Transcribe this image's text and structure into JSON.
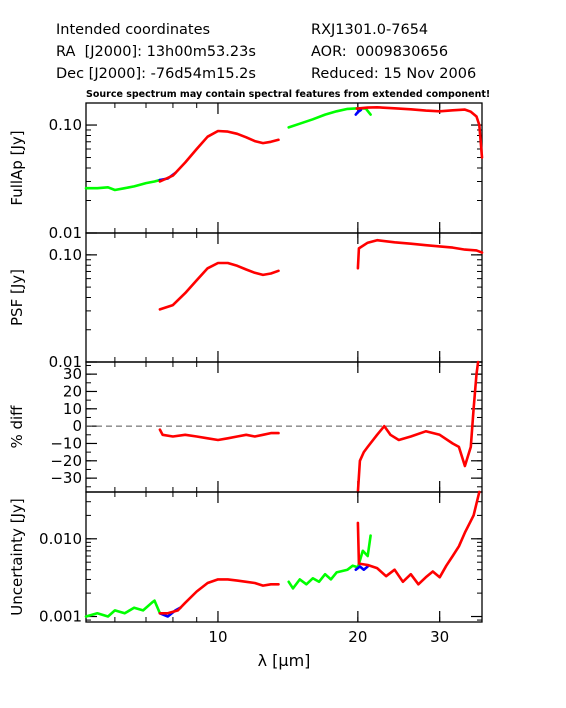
{
  "header": {
    "left": [
      "Intended coordinates",
      "RA  [J2000]: 13h00m53.23s",
      "Dec [J2000]: -76d54m15.2s"
    ],
    "right": [
      "RXJ1301.0-7654",
      "AOR:  0009830656",
      "Reduced: 15 Nov 2006"
    ],
    "note": "Source spectrum may contain spectral features from extended component!"
  },
  "colors": {
    "green": "#00ff00",
    "red": "#ff0000",
    "blue": "#0000ff",
    "axis": "#000000"
  },
  "chart_data": [
    {
      "type": "line",
      "ylabel": "FullAp [Jy]",
      "xlabel": "",
      "xscale": "log",
      "xlim": [
        5.2,
        37
      ],
      "yscale": "log",
      "ylim": [
        0.01,
        0.16
      ],
      "yticks": [
        0.01,
        0.1
      ],
      "ytick_labels": [
        "0.01",
        "0.10"
      ],
      "series": [
        {
          "color": "green",
          "points": [
            [
              5.2,
              0.026
            ],
            [
              5.5,
              0.026
            ],
            [
              5.8,
              0.0265
            ],
            [
              6.0,
              0.025
            ],
            [
              6.3,
              0.026
            ],
            [
              6.6,
              0.027
            ],
            [
              6.8,
              0.028
            ],
            [
              7.0,
              0.029
            ],
            [
              7.3,
              0.03
            ],
            [
              7.5,
              0.031
            ]
          ]
        },
        {
          "color": "blue",
          "points": [
            [
              7.5,
              0.031
            ],
            [
              7.8,
              0.032
            ],
            [
              8.1,
              0.036
            ]
          ]
        },
        {
          "color": "red",
          "points": [
            [
              7.5,
              0.03
            ],
            [
              8.0,
              0.034
            ],
            [
              8.5,
              0.045
            ],
            [
              9.0,
              0.06
            ],
            [
              9.5,
              0.078
            ],
            [
              10.0,
              0.088
            ],
            [
              10.5,
              0.087
            ],
            [
              11.0,
              0.083
            ],
            [
              11.5,
              0.077
            ],
            [
              12.0,
              0.071
            ],
            [
              12.5,
              0.068
            ],
            [
              13.0,
              0.07
            ],
            [
              13.5,
              0.073
            ]
          ]
        },
        {
          "color": "green",
          "points": [
            [
              14.2,
              0.095
            ],
            [
              15.0,
              0.103
            ],
            [
              16.0,
              0.113
            ],
            [
              17.0,
              0.125
            ],
            [
              18.0,
              0.134
            ],
            [
              19.0,
              0.141
            ],
            [
              20.0,
              0.143
            ],
            [
              20.8,
              0.142
            ],
            [
              21.3,
              0.125
            ]
          ]
        },
        {
          "color": "blue",
          "points": [
            [
              19.8,
              0.125
            ],
            [
              20.0,
              0.132
            ],
            [
              20.3,
              0.138
            ]
          ]
        },
        {
          "color": "red",
          "points": [
            [
              19.9,
              0.142
            ],
            [
              21.0,
              0.145
            ],
            [
              22.0,
              0.146
            ],
            [
              24.0,
              0.143
            ],
            [
              26.0,
              0.14
            ],
            [
              28.0,
              0.136
            ],
            [
              30.0,
              0.134
            ],
            [
              32.0,
              0.137
            ],
            [
              34.0,
              0.139
            ],
            [
              35.0,
              0.133
            ],
            [
              36.0,
              0.12
            ],
            [
              36.5,
              0.1
            ],
            [
              37.0,
              0.05
            ]
          ]
        }
      ]
    },
    {
      "type": "line",
      "ylabel": "PSF [Jy]",
      "xlabel": "",
      "xscale": "log",
      "xlim": [
        5.2,
        37
      ],
      "yscale": "log",
      "ylim": [
        0.01,
        0.16
      ],
      "yticks": [
        0.01,
        0.1
      ],
      "ytick_labels": [
        "0.01",
        "0.10"
      ],
      "series": [
        {
          "color": "red",
          "points": [
            [
              7.5,
              0.031
            ],
            [
              8.0,
              0.034
            ],
            [
              8.5,
              0.044
            ],
            [
              9.0,
              0.058
            ],
            [
              9.5,
              0.075
            ],
            [
              10.0,
              0.084
            ],
            [
              10.5,
              0.084
            ],
            [
              11.0,
              0.079
            ],
            [
              11.5,
              0.073
            ],
            [
              12.0,
              0.068
            ],
            [
              12.5,
              0.065
            ],
            [
              13.0,
              0.067
            ],
            [
              13.5,
              0.071
            ]
          ]
        },
        {
          "color": "red",
          "points": [
            [
              20.0,
              0.075
            ],
            [
              20.1,
              0.115
            ],
            [
              21.0,
              0.13
            ],
            [
              22.0,
              0.137
            ],
            [
              24.0,
              0.131
            ],
            [
              26.0,
              0.127
            ],
            [
              28.0,
              0.123
            ],
            [
              30.0,
              0.12
            ],
            [
              32.0,
              0.117
            ],
            [
              34.0,
              0.112
            ],
            [
              36.0,
              0.11
            ],
            [
              37.0,
              0.105
            ]
          ]
        }
      ]
    },
    {
      "type": "line",
      "ylabel": "% diff",
      "xlabel": "",
      "xscale": "log",
      "xlim": [
        5.2,
        37
      ],
      "yscale": "linear",
      "ylim": [
        -38,
        37
      ],
      "yticks": [
        -30,
        -20,
        -10,
        0,
        10,
        20,
        30
      ],
      "ytick_labels": [
        "−30",
        "−20",
        "−10",
        "0",
        "10",
        "20",
        "30"
      ],
      "reference_line": 0,
      "series": [
        {
          "color": "red",
          "points": [
            [
              7.5,
              -2
            ],
            [
              7.6,
              -5
            ],
            [
              8.0,
              -6
            ],
            [
              8.5,
              -5
            ],
            [
              9.0,
              -6
            ],
            [
              9.5,
              -7
            ],
            [
              10.0,
              -8
            ],
            [
              10.5,
              -7
            ],
            [
              11.0,
              -6
            ],
            [
              11.5,
              -5
            ],
            [
              12.0,
              -6
            ],
            [
              12.5,
              -5
            ],
            [
              13.0,
              -4
            ],
            [
              13.5,
              -4
            ]
          ]
        },
        {
          "color": "red",
          "points": [
            [
              20.0,
              -38
            ],
            [
              20.2,
              -20
            ],
            [
              20.6,
              -15
            ],
            [
              21.0,
              -12
            ],
            [
              22.0,
              -5
            ],
            [
              22.8,
              0
            ],
            [
              23.5,
              -5
            ],
            [
              24.5,
              -8
            ],
            [
              26.0,
              -6
            ],
            [
              28.0,
              -3
            ],
            [
              30.0,
              -5
            ],
            [
              32.0,
              -10
            ],
            [
              33.0,
              -12
            ],
            [
              34.0,
              -23
            ],
            [
              35.0,
              -12
            ],
            [
              35.5,
              10
            ],
            [
              36.0,
              30
            ],
            [
              36.3,
              37
            ]
          ]
        }
      ]
    },
    {
      "type": "line",
      "ylabel": "Uncertainty [Jy]",
      "xlabel": "λ [μm]",
      "xscale": "log",
      "xlim": [
        5.2,
        37
      ],
      "yscale": "log",
      "ylim": [
        0.00085,
        0.04
      ],
      "yticks": [
        0.001,
        0.01
      ],
      "ytick_labels": [
        "0.001",
        "0.010"
      ],
      "xticks": [
        10,
        20,
        30
      ],
      "xtick_labels": [
        "10",
        "20",
        "30"
      ],
      "series": [
        {
          "color": "green",
          "points": [
            [
              5.2,
              0.001
            ],
            [
              5.5,
              0.0011
            ],
            [
              5.8,
              0.001
            ],
            [
              6.0,
              0.0012
            ],
            [
              6.3,
              0.0011
            ],
            [
              6.6,
              0.0013
            ],
            [
              6.9,
              0.0012
            ],
            [
              7.2,
              0.0015
            ],
            [
              7.3,
              0.0016
            ],
            [
              7.5,
              0.0011
            ]
          ]
        },
        {
          "color": "blue",
          "points": [
            [
              7.5,
              0.0011
            ],
            [
              7.8,
              0.001
            ],
            [
              8.1,
              0.0012
            ],
            [
              8.3,
              0.0013
            ]
          ]
        },
        {
          "color": "red",
          "points": [
            [
              7.5,
              0.0011
            ],
            [
              7.8,
              0.0011
            ],
            [
              8.2,
              0.0012
            ],
            [
              8.5,
              0.0015
            ],
            [
              9.0,
              0.0021
            ],
            [
              9.5,
              0.0027
            ],
            [
              10.0,
              0.003
            ],
            [
              10.5,
              0.003
            ],
            [
              11.0,
              0.0029
            ],
            [
              11.5,
              0.0028
            ],
            [
              12.0,
              0.0027
            ],
            [
              12.5,
              0.0025
            ],
            [
              13.0,
              0.0026
            ],
            [
              13.5,
              0.0026
            ]
          ]
        },
        {
          "color": "green",
          "points": [
            [
              14.2,
              0.0028
            ],
            [
              14.5,
              0.0023
            ],
            [
              15.0,
              0.003
            ],
            [
              15.5,
              0.0026
            ],
            [
              16.0,
              0.0031
            ],
            [
              16.5,
              0.0028
            ],
            [
              17.0,
              0.0035
            ],
            [
              17.5,
              0.003
            ],
            [
              18.0,
              0.0037
            ],
            [
              19.0,
              0.004
            ],
            [
              19.5,
              0.0045
            ],
            [
              20.0,
              0.0043
            ],
            [
              20.5,
              0.007
            ],
            [
              21.0,
              0.006
            ],
            [
              21.3,
              0.011
            ]
          ]
        },
        {
          "color": "blue",
          "points": [
            [
              19.8,
              0.004
            ],
            [
              20.2,
              0.0044
            ],
            [
              20.6,
              0.004
            ],
            [
              21.0,
              0.0044
            ]
          ]
        },
        {
          "color": "red",
          "points": [
            [
              20.0,
              0.016
            ],
            [
              20.1,
              0.0048
            ],
            [
              21.0,
              0.0046
            ],
            [
              22.0,
              0.0042
            ],
            [
              23.0,
              0.0033
            ],
            [
              24.0,
              0.004
            ],
            [
              25.0,
              0.0028
            ],
            [
              26.0,
              0.0035
            ],
            [
              27.0,
              0.0026
            ],
            [
              28.0,
              0.0032
            ],
            [
              29.0,
              0.0038
            ],
            [
              30.0,
              0.0032
            ],
            [
              31.0,
              0.0045
            ],
            [
              32.0,
              0.006
            ],
            [
              33.0,
              0.008
            ],
            [
              34.0,
              0.012
            ],
            [
              35.0,
              0.017
            ],
            [
              35.5,
              0.02
            ],
            [
              36.5,
              0.04
            ]
          ]
        }
      ]
    }
  ]
}
